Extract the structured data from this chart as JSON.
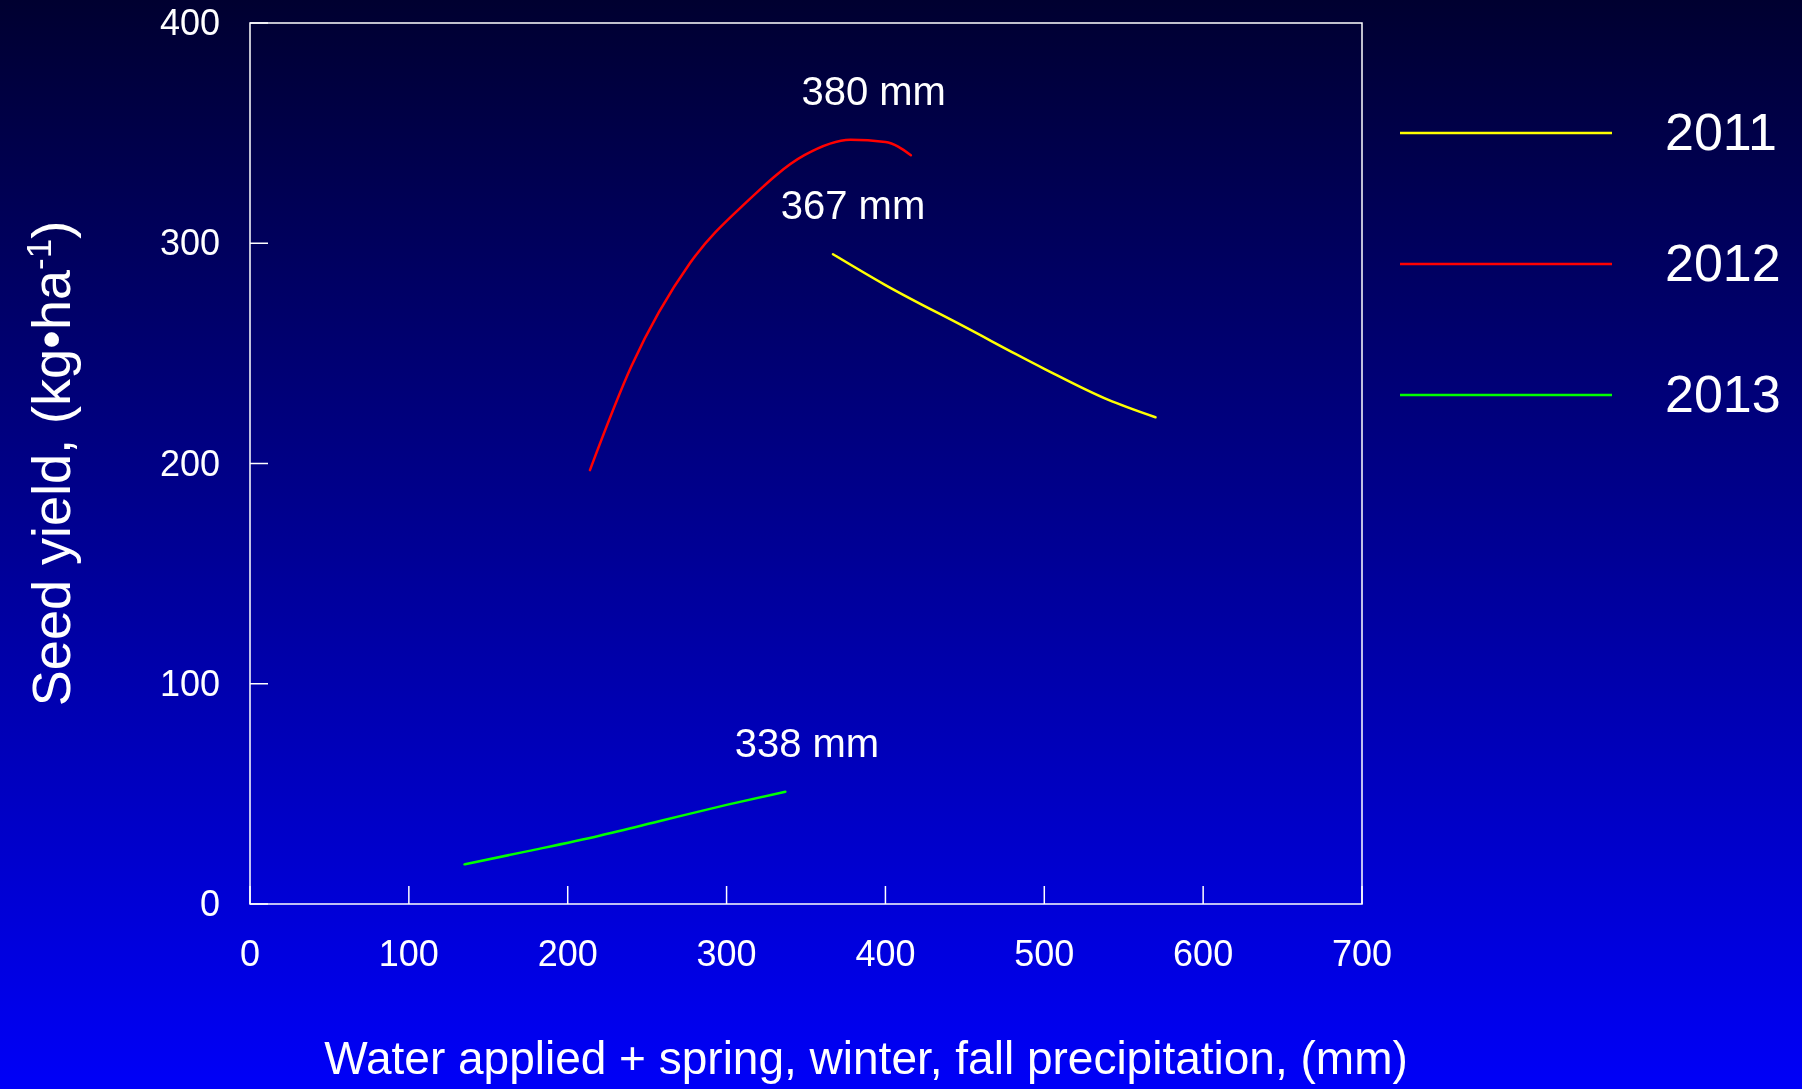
{
  "chart_data": {
    "type": "line",
    "xlabel": "Water applied + spring, winter, fall precipitation, (mm)",
    "ylabel": "Seed yield, (kg•ha$^{-1}$)",
    "xlim": [
      0,
      700
    ],
    "xticks": [
      0,
      100,
      200,
      300,
      400,
      500,
      600,
      700
    ],
    "ylim": [
      0,
      400
    ],
    "yticks": [
      0,
      100,
      200,
      300,
      400
    ],
    "grid": false,
    "legend": "right",
    "line_style": "solid",
    "marker": "none",
    "series": [
      {
        "name": "2011",
        "color": "#ffff00",
        "x": [
          367,
          400,
          450,
          500,
          540,
          570
        ],
        "values": [
          295,
          281,
          262,
          243,
          229,
          221
        ]
      },
      {
        "name": "2012",
        "color": "#ff0000",
        "x": [
          214,
          240,
          277,
          313,
          349,
          378,
          400,
          416
        ],
        "values": [
          197,
          244,
          291,
          319,
          340,
          347,
          346,
          340
        ]
      },
      {
        "name": "2013",
        "color": "#00ff00",
        "x": [
          135,
          175,
          220,
          260,
          300,
          337
        ],
        "values": [
          18,
          24,
          31,
          38,
          45,
          51
        ]
      }
    ],
    "annotations": [
      {
        "text": "380 mm",
        "x": 380,
        "y": 347
      },
      {
        "text": "367 mm",
        "x": 367,
        "y": 295
      },
      {
        "text": "338 mm",
        "x": 338,
        "y": 51
      }
    ]
  }
}
